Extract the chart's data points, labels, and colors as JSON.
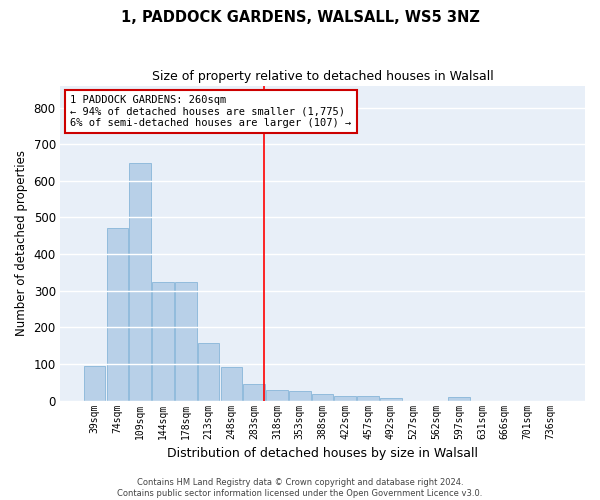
{
  "title1": "1, PADDOCK GARDENS, WALSALL, WS5 3NZ",
  "title2": "Size of property relative to detached houses in Walsall",
  "xlabel": "Distribution of detached houses by size in Walsall",
  "ylabel": "Number of detached properties",
  "bar_labels": [
    "39sqm",
    "74sqm",
    "109sqm",
    "144sqm",
    "178sqm",
    "213sqm",
    "248sqm",
    "283sqm",
    "318sqm",
    "353sqm",
    "388sqm",
    "422sqm",
    "457sqm",
    "492sqm",
    "527sqm",
    "562sqm",
    "597sqm",
    "631sqm",
    "666sqm",
    "701sqm",
    "736sqm"
  ],
  "bar_values": [
    95,
    470,
    648,
    323,
    323,
    158,
    93,
    45,
    28,
    25,
    17,
    14,
    12,
    6,
    0,
    0,
    10,
    0,
    0,
    0,
    0
  ],
  "bar_color": "#b8d0e8",
  "bar_edge_color": "#7aadd4",
  "background_color": "#e8eff8",
  "grid_color": "#ffffff",
  "property_line_x": 7.45,
  "annotation_text_line1": "1 PADDOCK GARDENS: 260sqm",
  "annotation_text_line2": "← 94% of detached houses are smaller (1,775)",
  "annotation_text_line3": "6% of semi-detached houses are larger (107) →",
  "annotation_box_color": "#cc0000",
  "ylim": [
    0,
    860
  ],
  "yticks": [
    0,
    100,
    200,
    300,
    400,
    500,
    600,
    700,
    800
  ],
  "footer_text": "Contains HM Land Registry data © Crown copyright and database right 2024.\nContains public sector information licensed under the Open Government Licence v3.0."
}
